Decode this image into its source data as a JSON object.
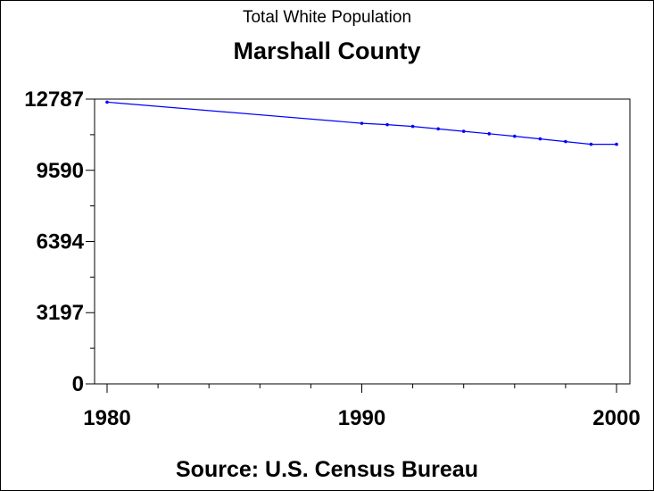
{
  "chart_data": {
    "type": "line",
    "title": "Total White Population",
    "subtitle": "Marshall County",
    "source": "Source: U.S. Census Bureau",
    "x": [
      1980,
      1990,
      1991,
      1992,
      1993,
      1994,
      1995,
      1996,
      1997,
      1998,
      1999,
      2000
    ],
    "y": [
      12650,
      11700,
      11640,
      11560,
      11450,
      11340,
      11230,
      11120,
      11000,
      10880,
      10760,
      10760
    ],
    "xlim": [
      1980,
      2000
    ],
    "ylim": [
      0,
      12787
    ],
    "y_ticks": [
      "0",
      "3197",
      "6394",
      "9590",
      "12787"
    ],
    "x_ticks": [
      "1980",
      "1990",
      "2000"
    ],
    "line_color": "#0000ff",
    "grid": false,
    "legend": "none"
  }
}
